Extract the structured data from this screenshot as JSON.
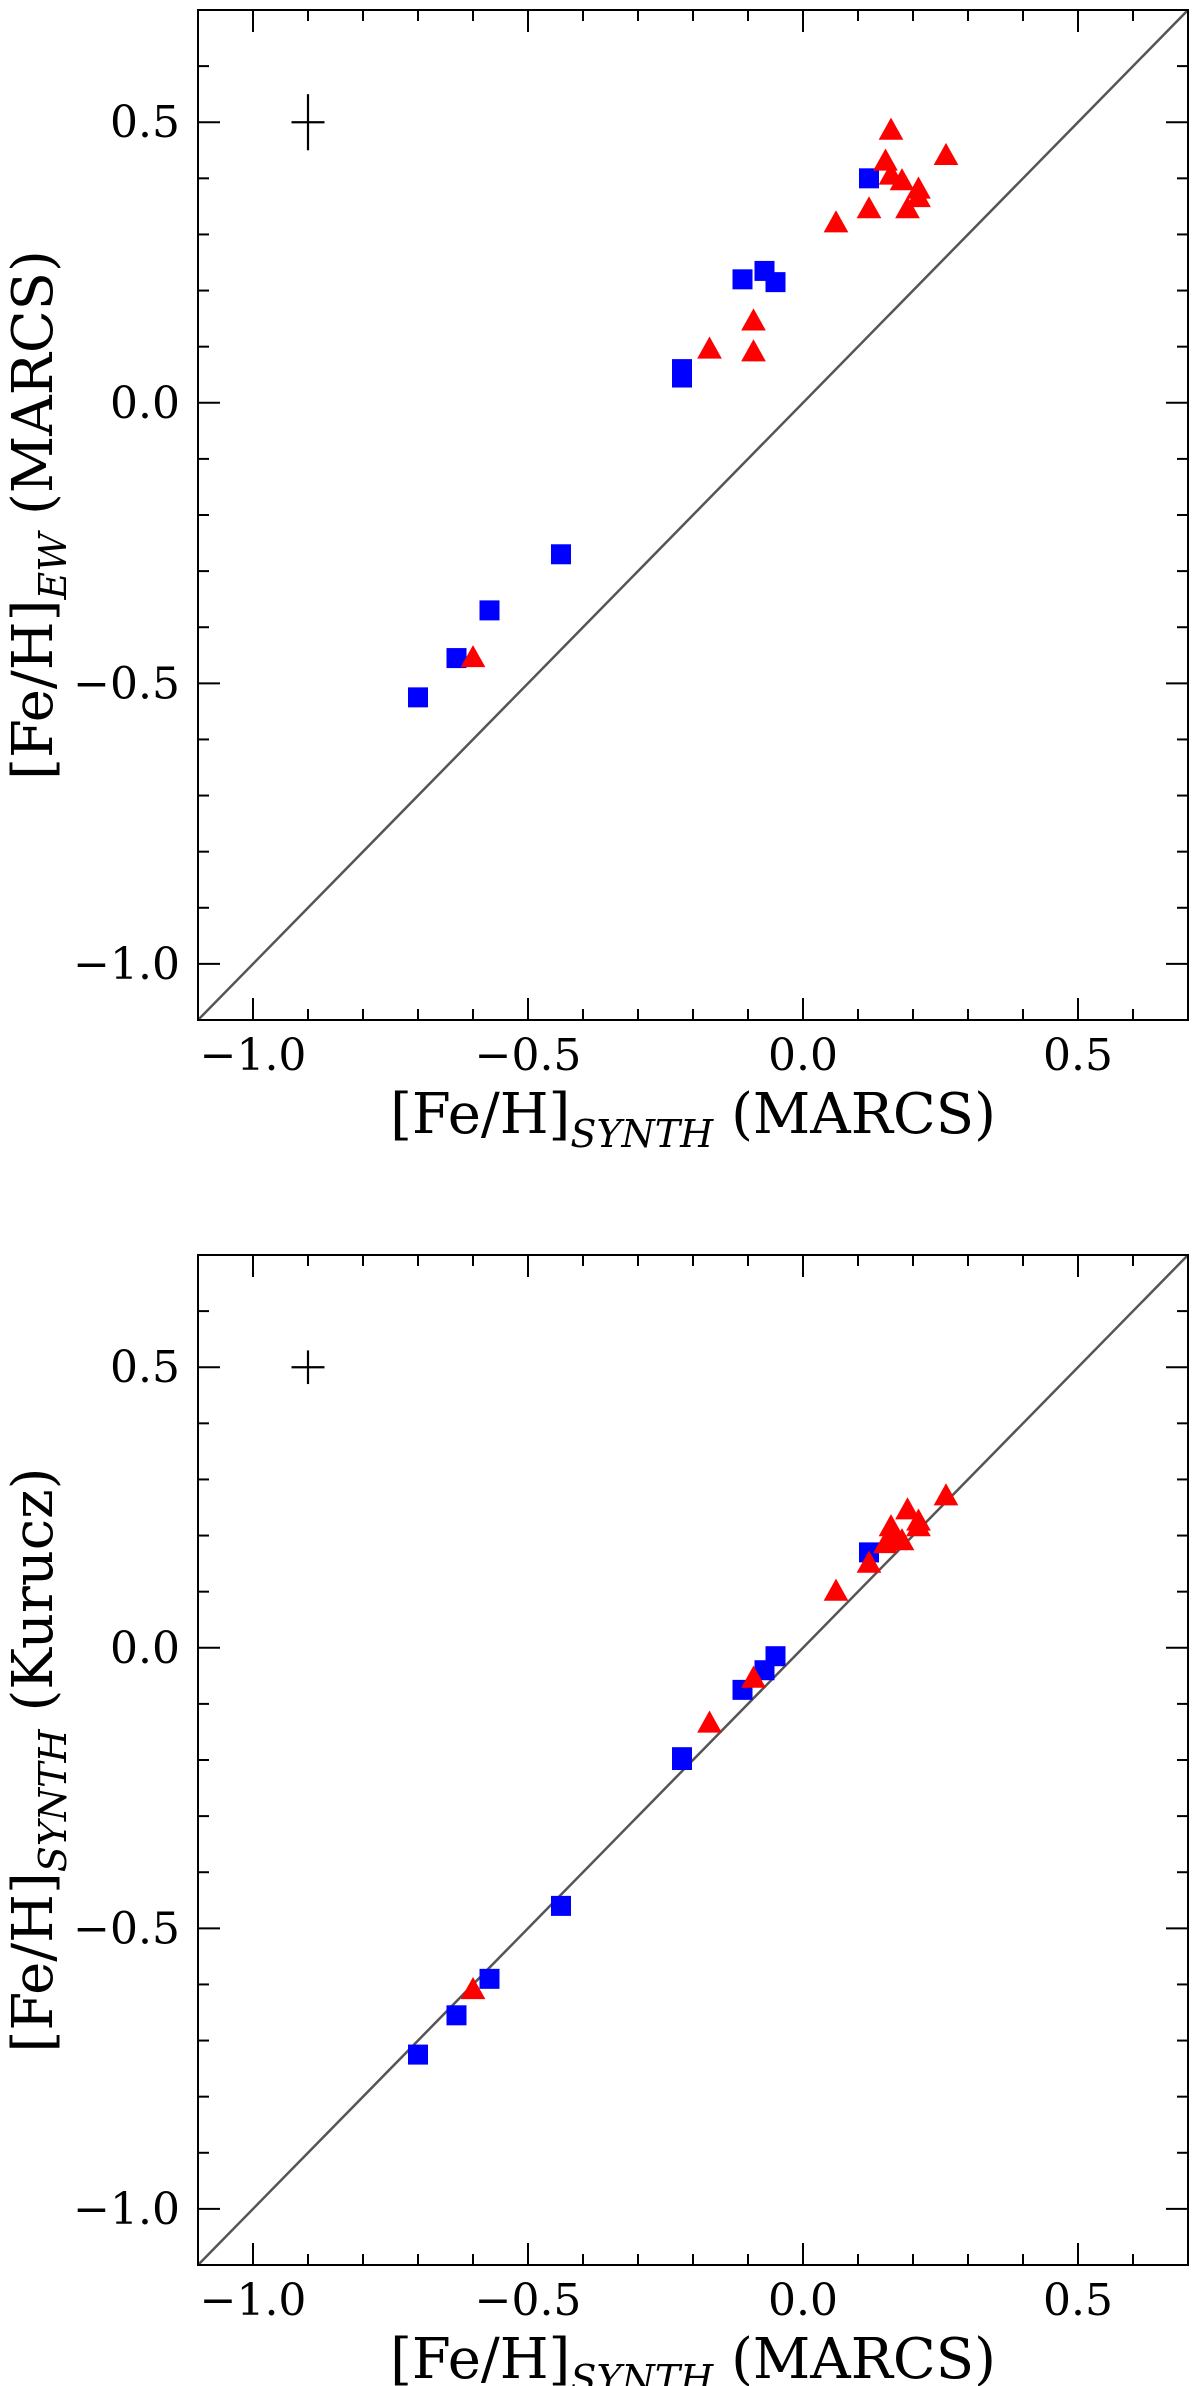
{
  "colors": {
    "squares": "#0000ff",
    "triangles": "#ff0000",
    "identity_line": "#555555",
    "frame": "#000000"
  },
  "chart_data": [
    {
      "type": "scatter",
      "xlim": [
        -1.1,
        0.7
      ],
      "ylim": [
        -1.1,
        0.7
      ],
      "xticks": [
        -1.0,
        -0.5,
        0.0,
        0.5
      ],
      "yticks": [
        -1.0,
        -0.5,
        0.0,
        0.5
      ],
      "xtick_labels": [
        "−1.0",
        "−0.5",
        "0.0",
        "0.5"
      ],
      "ytick_labels": [
        "−1.0",
        "−0.5",
        "0.0",
        "0.5"
      ],
      "xlabel": {
        "main": "[Fe/H]",
        "sub": "SYNTH",
        "suffix": " (MARCS)"
      },
      "ylabel": {
        "main": "[Fe/H]",
        "sub": "EW",
        "suffix": " (MARCS)"
      },
      "identity_line": true,
      "error_bar": {
        "x": -0.9,
        "y": 0.5,
        "xerr": 0.03,
        "yerr": 0.05
      },
      "series": [
        {
          "name": "squares",
          "marker": "square",
          "color": "#0000ff",
          "points": [
            [
              -0.7,
              -0.525
            ],
            [
              -0.63,
              -0.455
            ],
            [
              -0.57,
              -0.37
            ],
            [
              -0.44,
              -0.27
            ],
            [
              -0.22,
              0.06
            ],
            [
              -0.22,
              0.045
            ],
            [
              -0.11,
              0.22
            ],
            [
              -0.07,
              0.235
            ],
            [
              -0.05,
              0.215
            ],
            [
              0.12,
              0.4
            ]
          ]
        },
        {
          "name": "triangles",
          "marker": "triangle",
          "color": "#ff0000",
          "points": [
            [
              -0.6,
              -0.455
            ],
            [
              -0.17,
              0.095
            ],
            [
              -0.09,
              0.145
            ],
            [
              -0.09,
              0.09
            ],
            [
              0.06,
              0.32
            ],
            [
              0.12,
              0.345
            ],
            [
              0.15,
              0.43
            ],
            [
              0.16,
              0.485
            ],
            [
              0.16,
              0.405
            ],
            [
              0.18,
              0.395
            ],
            [
              0.19,
              0.345
            ],
            [
              0.21,
              0.38
            ],
            [
              0.21,
              0.365
            ],
            [
              0.26,
              0.44
            ]
          ]
        }
      ]
    },
    {
      "type": "scatter",
      "xlim": [
        -1.1,
        0.7
      ],
      "ylim": [
        -1.1,
        0.7
      ],
      "xticks": [
        -1.0,
        -0.5,
        0.0,
        0.5
      ],
      "yticks": [
        -1.0,
        -0.5,
        0.0,
        0.5
      ],
      "xtick_labels": [
        "−1.0",
        "−0.5",
        "0.0",
        "0.5"
      ],
      "ytick_labels": [
        "−1.0",
        "−0.5",
        "0.0",
        "0.5"
      ],
      "xlabel": {
        "main": "[Fe/H]",
        "sub": "SYNTH",
        "suffix": " (MARCS)"
      },
      "ylabel": {
        "main": "[Fe/H]",
        "sub": "SYNTH",
        "suffix": " (Kurucz)"
      },
      "identity_line": true,
      "error_bar": {
        "x": -0.9,
        "y": 0.5,
        "xerr": 0.03,
        "yerr": 0.03
      },
      "series": [
        {
          "name": "squares",
          "marker": "square",
          "color": "#0000ff",
          "points": [
            [
              -0.7,
              -0.725
            ],
            [
              -0.63,
              -0.655
            ],
            [
              -0.57,
              -0.59
            ],
            [
              -0.44,
              -0.46
            ],
            [
              -0.22,
              -0.195
            ],
            [
              -0.22,
              -0.2
            ],
            [
              -0.11,
              -0.075
            ],
            [
              -0.07,
              -0.04
            ],
            [
              -0.05,
              -0.015
            ],
            [
              0.12,
              0.17
            ]
          ]
        },
        {
          "name": "triangles",
          "marker": "triangle",
          "color": "#ff0000",
          "points": [
            [
              -0.6,
              -0.61
            ],
            [
              -0.17,
              -0.135
            ],
            [
              -0.09,
              -0.055
            ],
            [
              0.06,
              0.1
            ],
            [
              0.12,
              0.15
            ],
            [
              0.15,
              0.185
            ],
            [
              0.16,
              0.215
            ],
            [
              0.16,
              0.2
            ],
            [
              0.18,
              0.19
            ],
            [
              0.19,
              0.245
            ],
            [
              0.21,
              0.225
            ],
            [
              0.21,
              0.215
            ],
            [
              0.26,
              0.27
            ]
          ]
        }
      ]
    }
  ]
}
